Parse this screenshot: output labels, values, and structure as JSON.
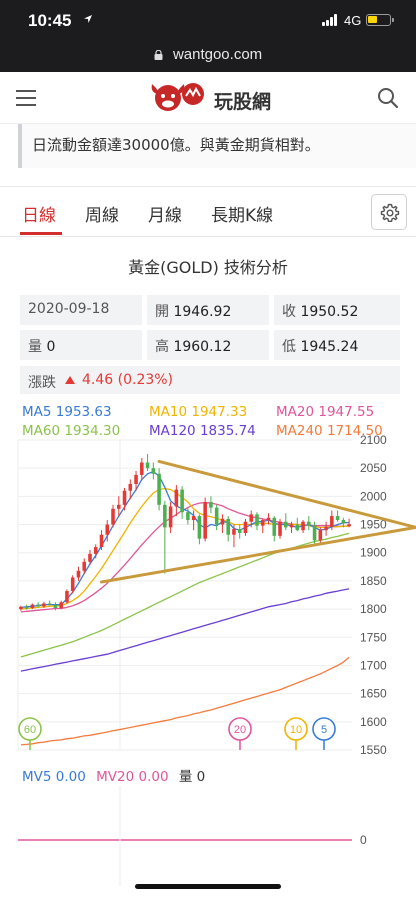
{
  "status_bar": {
    "time": "10:45",
    "network": "4G"
  },
  "browser": {
    "url": "wantgoo.com"
  },
  "site": {
    "name": "玩股網"
  },
  "excerpt": {
    "text": "日流動金額達30000億。與黃金期貨相對。"
  },
  "tabs": [
    {
      "label": "日線",
      "active": true
    },
    {
      "label": "周線",
      "active": false
    },
    {
      "label": "月線",
      "active": false
    },
    {
      "label": "長期K線",
      "active": false
    }
  ],
  "chart_title": "黃金(GOLD) 技術分析",
  "quote": {
    "date": "2020-09-18",
    "open_label": "開",
    "open": "1946.92",
    "close_label": "收",
    "close": "1950.52",
    "volume_label": "量",
    "volume": "0",
    "high_label": "高",
    "high": "1960.12",
    "low_label": "低",
    "low": "1945.24",
    "change_label": "漲跌",
    "change": "4.46 (0.23%)"
  },
  "ma_legend": [
    {
      "label": "MA5 1953.63",
      "color": "#3a7bd5"
    },
    {
      "label": "MA10 1947.33",
      "color": "#f0b400"
    },
    {
      "label": "MA20 1947.55",
      "color": "#e0569a"
    },
    {
      "label": "MA60 1934.30",
      "color": "#8bc34a"
    },
    {
      "label": "MA120 1835.74",
      "color": "#6a3fd1"
    },
    {
      "label": "MA240 1714.50",
      "color": "#f47b3d"
    }
  ],
  "chart_data": {
    "type": "candlestick",
    "y_ticks": [
      2100,
      2050,
      2000,
      1950,
      1900,
      1850,
      1800,
      1750,
      1700,
      1650,
      1600,
      1550
    ],
    "ylim": [
      1550,
      2100
    ],
    "grid": true,
    "ma_markers": [
      "60",
      "20",
      "10",
      "5"
    ],
    "annotations": [
      "symmetrical-triangle trendlines"
    ],
    "candles": [
      [
        1800,
        1806,
        1797,
        1804
      ],
      [
        1803,
        1808,
        1799,
        1801
      ],
      [
        1802,
        1810,
        1800,
        1808
      ],
      [
        1808,
        1812,
        1803,
        1805
      ],
      [
        1805,
        1813,
        1802,
        1810
      ],
      [
        1810,
        1815,
        1806,
        1808
      ],
      [
        1808,
        1812,
        1798,
        1802
      ],
      [
        1802,
        1815,
        1800,
        1812
      ],
      [
        1812,
        1835,
        1810,
        1832
      ],
      [
        1832,
        1860,
        1828,
        1856
      ],
      [
        1856,
        1875,
        1850,
        1868
      ],
      [
        1868,
        1890,
        1862,
        1884
      ],
      [
        1884,
        1905,
        1878,
        1898
      ],
      [
        1898,
        1915,
        1890,
        1910
      ],
      [
        1910,
        1940,
        1905,
        1932
      ],
      [
        1932,
        1958,
        1920,
        1950
      ],
      [
        1950,
        1985,
        1945,
        1978
      ],
      [
        1978,
        2000,
        1965,
        1985
      ],
      [
        1985,
        2015,
        1975,
        2010
      ],
      [
        2010,
        2030,
        1995,
        2022
      ],
      [
        2022,
        2045,
        2010,
        2038
      ],
      [
        2038,
        2068,
        2030,
        2060
      ],
      [
        2060,
        2075,
        2045,
        2050
      ],
      [
        2050,
        2060,
        2030,
        2040
      ],
      [
        2040,
        2050,
        1975,
        1985
      ],
      [
        1985,
        1992,
        1863,
        1945
      ],
      [
        1945,
        1990,
        1935,
        1982
      ],
      [
        1982,
        2020,
        1965,
        2012
      ],
      [
        2012,
        2018,
        1960,
        1972
      ],
      [
        1972,
        1980,
        1950,
        1958
      ],
      [
        1958,
        1975,
        1940,
        1965
      ],
      [
        1965,
        1968,
        1915,
        1925
      ],
      [
        1925,
        1998,
        1920,
        1990
      ],
      [
        1990,
        2000,
        1970,
        1980
      ],
      [
        1980,
        1985,
        1940,
        1950
      ],
      [
        1950,
        1968,
        1935,
        1960
      ],
      [
        1960,
        1965,
        1920,
        1932
      ],
      [
        1932,
        1950,
        1910,
        1942
      ],
      [
        1942,
        1950,
        1925,
        1935
      ],
      [
        1935,
        1960,
        1930,
        1955
      ],
      [
        1955,
        1975,
        1945,
        1968
      ],
      [
        1968,
        1972,
        1940,
        1948
      ],
      [
        1948,
        1960,
        1935,
        1958
      ],
      [
        1958,
        1970,
        1950,
        1962
      ],
      [
        1962,
        1965,
        1920,
        1930
      ],
      [
        1930,
        1960,
        1925,
        1955
      ],
      [
        1955,
        1970,
        1940,
        1945
      ],
      [
        1945,
        1955,
        1935,
        1950
      ],
      [
        1950,
        1962,
        1938,
        1940
      ],
      [
        1940,
        1958,
        1935,
        1955
      ],
      [
        1955,
        1965,
        1940,
        1948
      ],
      [
        1948,
        1955,
        1915,
        1922
      ],
      [
        1922,
        1945,
        1918,
        1940
      ],
      [
        1940,
        1955,
        1930,
        1946
      ],
      [
        1946,
        1975,
        1940,
        1965
      ],
      [
        1965,
        1975,
        1955,
        1958
      ],
      [
        1958,
        1962,
        1945,
        1952
      ],
      [
        1946.92,
        1960.12,
        1945.24,
        1950.52
      ]
    ],
    "series": [
      {
        "name": "MA5",
        "color": "#3a7bd5",
        "values": [
          1803,
          1804,
          1805,
          1806,
          1808,
          1808,
          1808,
          1808,
          1818,
          1830,
          1846,
          1863,
          1880,
          1895,
          1912,
          1930,
          1948,
          1965,
          1981,
          1997,
          2012,
          2030,
          2040,
          2044,
          2036,
          2016,
          1992,
          1983,
          1978,
          1974,
          1966,
          1950,
          1944,
          1950,
          1948,
          1955,
          1954,
          1943,
          1940,
          1945,
          1950,
          1955,
          1955,
          1958,
          1952,
          1950,
          1950,
          1948,
          1945,
          1948,
          1950,
          1945,
          1940,
          1942,
          1946,
          1950,
          1953,
          1953.63
        ]
      },
      {
        "name": "MA10",
        "color": "#f0b400",
        "values": [
          1800,
          1801,
          1802,
          1803,
          1804,
          1805,
          1806,
          1806,
          1810,
          1815,
          1822,
          1832,
          1845,
          1858,
          1872,
          1888,
          1904,
          1920,
          1936,
          1953,
          1968,
          1982,
          1995,
          2006,
          2012,
          2014,
          2012,
          2006,
          1998,
          1990,
          1978,
          1970,
          1966,
          1964,
          1961,
          1958,
          1955,
          1950,
          1950,
          1950,
          1950,
          1952,
          1952,
          1952,
          1950,
          1950,
          1950,
          1950,
          1950,
          1950,
          1948,
          1946,
          1945,
          1945,
          1946,
          1946,
          1947,
          1947.33
        ]
      },
      {
        "name": "MA20",
        "color": "#e0569a",
        "values": [
          1795,
          1796,
          1797,
          1798,
          1799,
          1800,
          1801,
          1801,
          1803,
          1806,
          1810,
          1815,
          1822,
          1829,
          1837,
          1846,
          1856,
          1867,
          1878,
          1890,
          1902,
          1914,
          1925,
          1936,
          1946,
          1955,
          1961,
          1968,
          1975,
          1980,
          1985,
          1988,
          1989,
          1988,
          1986,
          1983,
          1978,
          1974,
          1970,
          1967,
          1964,
          1962,
          1960,
          1958,
          1956,
          1954,
          1952,
          1951,
          1950,
          1949,
          1949,
          1948,
          1948,
          1948,
          1948,
          1947,
          1947,
          1947.55
        ]
      },
      {
        "name": "MA60",
        "color": "#8bc34a",
        "values": [
          1715,
          1718,
          1721,
          1724,
          1727,
          1730,
          1733,
          1736,
          1739,
          1742,
          1746,
          1750,
          1754,
          1758,
          1762,
          1767,
          1772,
          1777,
          1782,
          1787,
          1792,
          1797,
          1802,
          1807,
          1812,
          1817,
          1822,
          1827,
          1832,
          1837,
          1842,
          1847,
          1851,
          1855,
          1859,
          1863,
          1867,
          1871,
          1875,
          1879,
          1883,
          1887,
          1891,
          1895,
          1899,
          1902,
          1905,
          1908,
          1911,
          1914,
          1917,
          1920,
          1922,
          1924,
          1927,
          1929,
          1932,
          1934.3
        ]
      },
      {
        "name": "MA120",
        "color": "#6a3fd1",
        "values": [
          1690,
          1692,
          1694,
          1696,
          1698,
          1700,
          1702,
          1704,
          1706,
          1708,
          1710,
          1712,
          1714,
          1716,
          1718,
          1720,
          1723,
          1726,
          1729,
          1732,
          1735,
          1738,
          1741,
          1744,
          1747,
          1750,
          1753,
          1756,
          1759,
          1762,
          1765,
          1768,
          1771,
          1774,
          1777,
          1780,
          1783,
          1786,
          1789,
          1792,
          1795,
          1798,
          1801,
          1804,
          1806,
          1808,
          1810,
          1813,
          1815,
          1818,
          1820,
          1823,
          1825,
          1828,
          1830,
          1832,
          1834,
          1835.74
        ]
      },
      {
        "name": "MA240",
        "color": "#f47b3d",
        "values": [
          1559,
          1560,
          1561,
          1563,
          1564,
          1566,
          1567,
          1568,
          1570,
          1571,
          1573,
          1575,
          1576,
          1578,
          1580,
          1582,
          1584,
          1586,
          1588,
          1590,
          1592,
          1594,
          1596,
          1598,
          1600,
          1602,
          1604,
          1607,
          1609,
          1611,
          1614,
          1616,
          1619,
          1621,
          1624,
          1627,
          1630,
          1633,
          1636,
          1639,
          1642,
          1645,
          1648,
          1651,
          1654,
          1657,
          1661,
          1665,
          1669,
          1673,
          1677,
          1681,
          1685,
          1690,
          1695,
          1700,
          1706,
          1714.5
        ]
      }
    ]
  },
  "mv_legend": [
    {
      "label": "MV5 0.00",
      "color": "#3a7bd5"
    },
    {
      "label": "MV20 0.00",
      "color": "#e0569a"
    },
    {
      "label": "量 0",
      "color": "#333333"
    }
  ],
  "volume_chart": {
    "tick": "0"
  },
  "colors": {
    "up": "#e53935",
    "down": "#4caf50",
    "accent": "#d32f2f",
    "trend": "#c99a3c"
  }
}
